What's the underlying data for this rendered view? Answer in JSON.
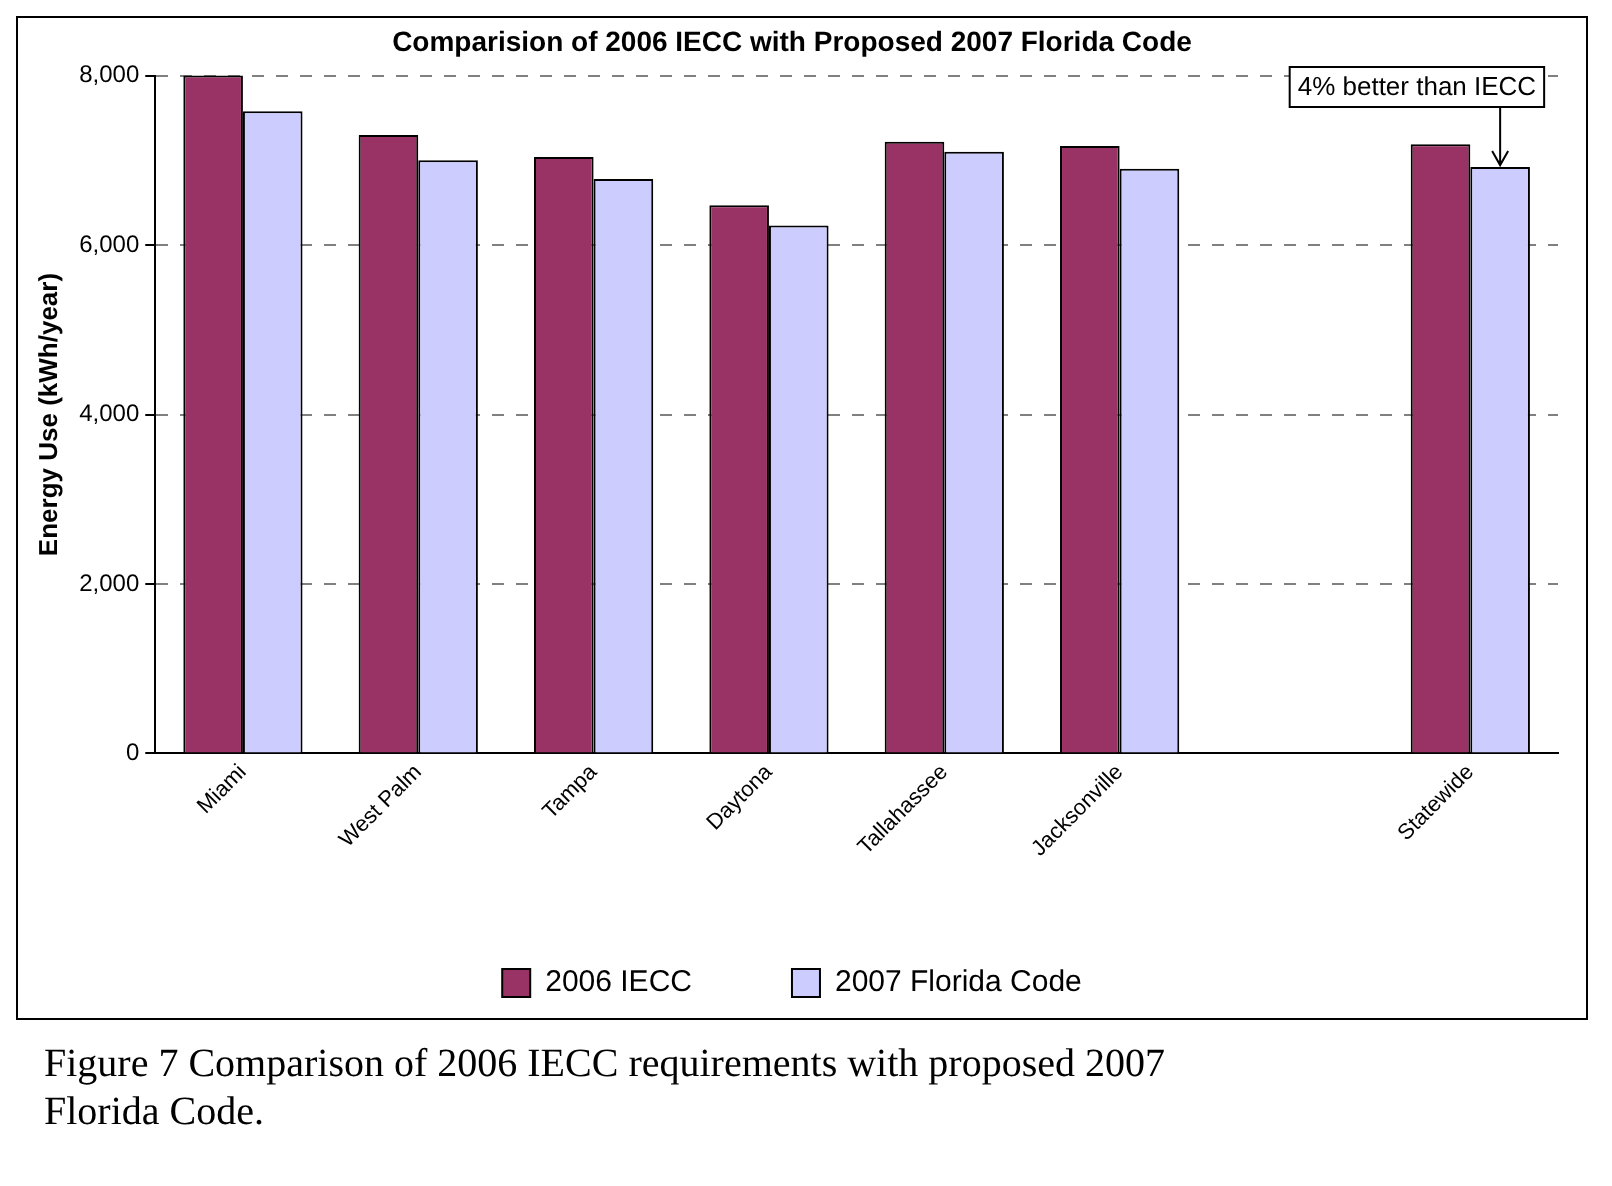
{
  "chart_data": {
    "type": "bar",
    "title": "Comparision of 2006 IECC with Proposed 2007 Florida Code",
    "ylabel": "Energy Use (kWh/year)",
    "categories": [
      "Miami",
      "West Palm",
      "Tampa",
      "Daytona",
      "Tallahassee",
      "Jacksonville",
      null,
      "Statewide"
    ],
    "series": [
      {
        "name": "2006 IECC",
        "color": "#993366",
        "values": [
          8000,
          7300,
          7040,
          6470,
          7220,
          7170,
          null,
          7190
        ]
      },
      {
        "name": "2007 Florida Code",
        "color": "#ccccff",
        "values": [
          7580,
          7000,
          6780,
          6230,
          7100,
          6900,
          null,
          6920
        ]
      }
    ],
    "ylim": [
      0,
      8000
    ],
    "yticks": [
      {
        "value": 0,
        "label": "0"
      },
      {
        "value": 2000,
        "label": "2,000"
      },
      {
        "value": 4000,
        "label": "4,000"
      },
      {
        "value": 6000,
        "label": "6,000"
      },
      {
        "value": 8000,
        "label": "8,000"
      }
    ],
    "grid": "y",
    "legend": "bottom",
    "annotations": [
      {
        "text": "4% better than IECC",
        "x": "Statewide",
        "y": 6920
      },
      "Figure 7  Comparison of 2006 IECC requirements with proposed 2007 Florida Code."
    ]
  }
}
